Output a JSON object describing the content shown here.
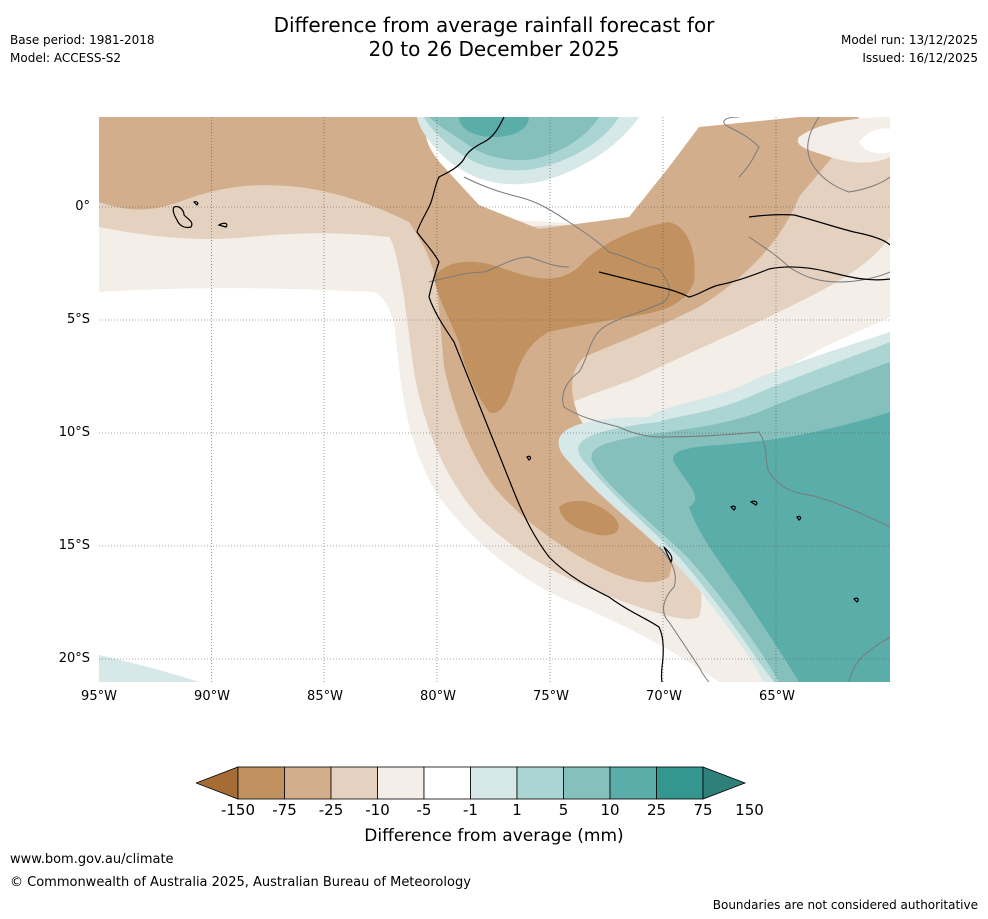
{
  "title": {
    "line1": "Difference from average rainfall forecast for",
    "line2": "20 to 26 December 2025"
  },
  "meta_left": {
    "base_period": "Base period: 1981-2018",
    "model": "Model: ACCESS-S2"
  },
  "meta_right": {
    "model_run": "Model run: 13/12/2025",
    "issued": "Issued: 16/12/2025"
  },
  "map": {
    "region": "North-western South America (Ecuador, Peru, western Brazil, Bolivia)",
    "lon_range": [
      -95,
      -60
    ],
    "lat_range": [
      -21,
      4
    ],
    "lat_ticks": [
      "0°",
      "5°S",
      "10°S",
      "15°S",
      "20°S"
    ],
    "lon_ticks": [
      "95°W",
      "90°W",
      "85°W",
      "80°W",
      "75°W",
      "70°W",
      "65°W"
    ]
  },
  "colorbar": {
    "ticks": [
      "-150",
      "-75",
      "-25",
      "-10",
      "-5",
      "-1",
      "1",
      "5",
      "10",
      "25",
      "75",
      "150"
    ],
    "colors": [
      "#a56c36",
      "#c1915f",
      "#d2ae8d",
      "#e4d1bf",
      "#f3eee8",
      "#ffffff",
      "#d6e8e7",
      "#abd5d3",
      "#85c0bd",
      "#5aada9",
      "#33968f",
      "#2f7f7a"
    ],
    "label": "Difference from average (mm)"
  },
  "footer": {
    "url": "www.bom.gov.au/climate",
    "copyright": "© Commonwealth of Australia 2025, Australian Bureau of Meteorology",
    "disclaimer": "Boundaries are not considered authoritative"
  }
}
